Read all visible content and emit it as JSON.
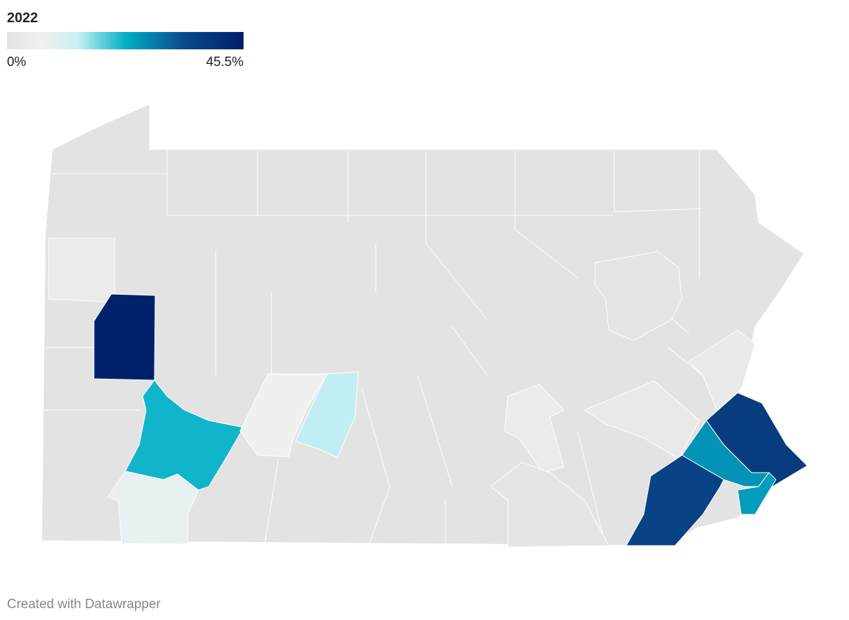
{
  "title": "2022",
  "legend": {
    "min": {
      "value": 0,
      "label": "0%"
    },
    "max": {
      "value": 45.5,
      "label": "45.5%"
    }
  },
  "regions": {
    "values": [
      4,
      45,
      22,
      8,
      7,
      14,
      4,
      3,
      3,
      38,
      26,
      25,
      36,
      1,
      0.8
    ]
  },
  "footer": "Created with Datawrapper"
}
